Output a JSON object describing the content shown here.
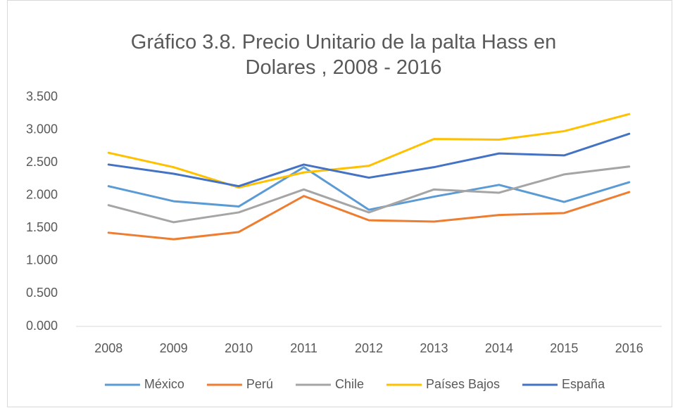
{
  "chart_data": {
    "type": "line",
    "title": "Gráfico 3.8. Precio Unitario de la palta Hass en Dolares , 2008 - 2016",
    "categories": [
      "2008",
      "2009",
      "2010",
      "2011",
      "2012",
      "2013",
      "2014",
      "2015",
      "2016"
    ],
    "series": [
      {
        "name": "México",
        "color": "#5B9BD5",
        "values": [
          2.14,
          1.91,
          1.83,
          2.43,
          1.78,
          1.98,
          2.16,
          1.9,
          2.2
        ]
      },
      {
        "name": "Perú",
        "color": "#ED7D31",
        "values": [
          1.43,
          1.33,
          1.44,
          1.99,
          1.62,
          1.6,
          1.7,
          1.73,
          2.05
        ]
      },
      {
        "name": "Chile",
        "color": "#A5A5A5",
        "values": [
          1.85,
          1.59,
          1.74,
          2.09,
          1.74,
          2.09,
          2.04,
          2.32,
          2.44
        ]
      },
      {
        "name": "Países Bajos",
        "color": "#FFC000",
        "values": [
          2.65,
          2.43,
          2.12,
          2.35,
          2.45,
          2.86,
          2.85,
          2.98,
          3.24
        ]
      },
      {
        "name": "España",
        "color": "#4472C4",
        "values": [
          2.47,
          2.33,
          2.14,
          2.47,
          2.27,
          2.43,
          2.64,
          2.61,
          2.94
        ]
      }
    ],
    "ylim": [
      0,
      3.5
    ],
    "yticks": [
      {
        "value": 0,
        "label": "0.000"
      },
      {
        "value": 0.5,
        "label": "0.500"
      },
      {
        "value": 1,
        "label": "1.000"
      },
      {
        "value": 1.5,
        "label": "1.500"
      },
      {
        "value": 2,
        "label": "2.000"
      },
      {
        "value": 2.5,
        "label": "2.500"
      },
      {
        "value": 3,
        "label": "3.000"
      },
      {
        "value": 3.5,
        "label": "3.500"
      }
    ],
    "grid": false,
    "legend": "bottom"
  }
}
